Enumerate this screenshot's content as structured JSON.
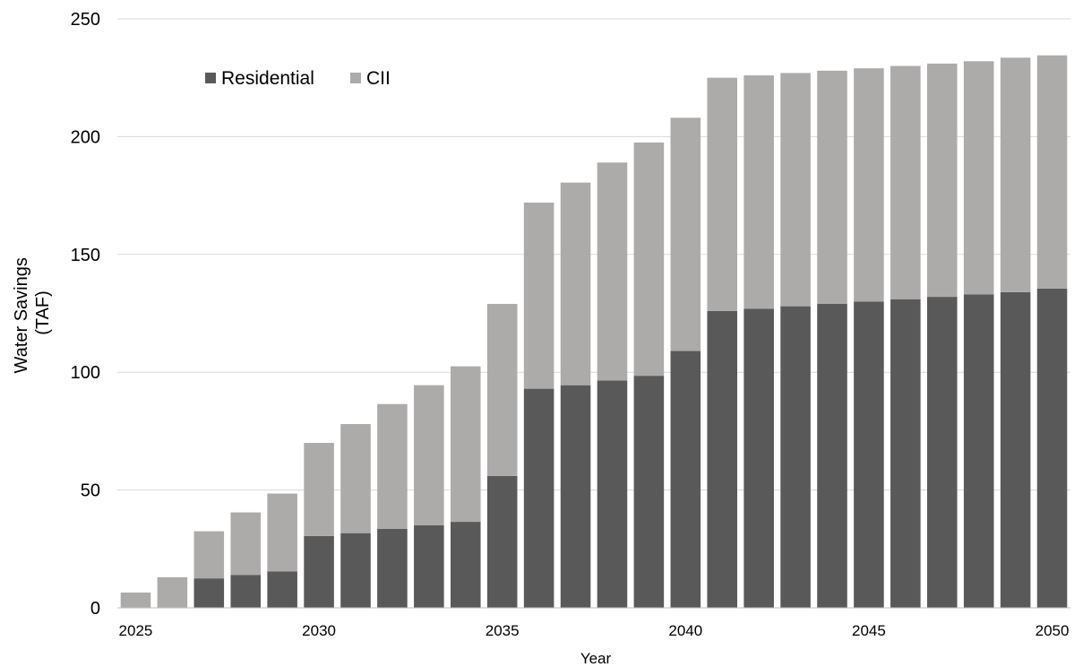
{
  "chart_data": {
    "type": "bar",
    "stacked": true,
    "title": "",
    "xlabel": "Year",
    "ylabel_lines": [
      "Water Savings",
      "(TAF)"
    ],
    "ylim": [
      0,
      250
    ],
    "yticks": [
      "0",
      "50",
      "100",
      "150",
      "200",
      "250"
    ],
    "xtick_labels": [
      "2025",
      "2030",
      "2035",
      "2040",
      "2045",
      "2050"
    ],
    "grid": true,
    "legend_position": "top-left",
    "categories": [
      "2025",
      "2026",
      "2027",
      "2028",
      "2029",
      "2030",
      "2031",
      "2032",
      "2033",
      "2034",
      "2035",
      "2036",
      "2037",
      "2038",
      "2039",
      "2040",
      "2041",
      "2042",
      "2043",
      "2044",
      "2045",
      "2046",
      "2047",
      "2048",
      "2049",
      "2050"
    ],
    "series": [
      {
        "name": "Residential",
        "color": "#595959",
        "values": [
          0,
          0,
          12.5,
          14,
          15.5,
          30.5,
          31.7,
          33.5,
          35,
          36.5,
          56,
          93,
          94.5,
          96.5,
          98.5,
          109,
          126,
          127,
          128,
          129,
          130,
          131,
          132,
          133,
          134,
          135.5
        ]
      },
      {
        "name": "CII",
        "color": "#adaaaa",
        "values": [
          6.5,
          13,
          20,
          26.5,
          33,
          39.5,
          46.3,
          53,
          59.5,
          66,
          73,
          79,
          86,
          92.5,
          99,
          99,
          99,
          99,
          99,
          99,
          99,
          99,
          99,
          99,
          99.5,
          99
        ]
      }
    ]
  }
}
